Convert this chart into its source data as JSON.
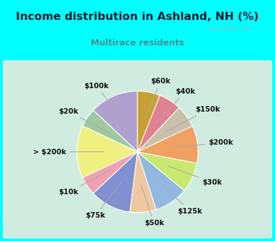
{
  "title": "Income distribution in Ashland, NH (%)",
  "subtitle": "Multirace residents",
  "title_color": "#1a1a2e",
  "subtitle_color": "#4a9090",
  "bg_cyan": "#00ffff",
  "bg_panel": "#d8ede0",
  "watermark": "City-Data.com",
  "labels": [
    "$100k",
    "$20k",
    "> $200k",
    "$10k",
    "$75k",
    "$50k",
    "$125k",
    "$30k",
    "$200k",
    "$150k",
    "$40k",
    "$60k"
  ],
  "sizes": [
    13,
    5,
    14,
    5,
    11,
    7,
    9,
    8,
    10,
    6,
    6,
    6
  ],
  "colors": [
    "#b0a0d0",
    "#a0c8a0",
    "#f0f080",
    "#f0a0b0",
    "#8090d0",
    "#f0c8a0",
    "#90b8e0",
    "#c8e870",
    "#f0a060",
    "#c8c0a8",
    "#e08090",
    "#c8a030"
  ],
  "startangle": 90,
  "label_fontsize": 7.5,
  "title_fontsize": 11.5,
  "subtitle_fontsize": 9
}
